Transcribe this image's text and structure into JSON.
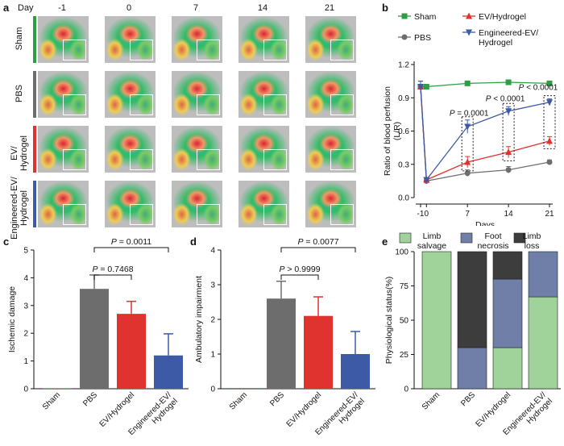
{
  "panel_a": {
    "label": "a",
    "day_prefix": "Day",
    "days": [
      "-1",
      "0",
      "7",
      "14",
      "21"
    ],
    "rows": [
      {
        "label": "Sham",
        "color": "#2e9e44"
      },
      {
        "label": "PBS",
        "color": "#6d6d6d"
      },
      {
        "label": "EV/\nHydrogel",
        "color": "#e0322e"
      },
      {
        "label": "Engineered-EV/\nHydrogel",
        "color": "#3c5aa6"
      }
    ]
  },
  "panel_b": {
    "label": "b",
    "legend": [
      "Sham",
      "EV/Hydrogel",
      "PBS",
      "Engineered-EV/\nHydrogel"
    ],
    "annotations": [
      "P = 0.0001",
      "P < 0.0001",
      "P < 0.0001"
    ]
  },
  "panel_c": {
    "label": "c",
    "annotations": [
      "P = 0.0011",
      "P = 0.7468"
    ]
  },
  "panel_d": {
    "label": "d",
    "annotations": [
      "P = 0.0077",
      "P > 0.9999"
    ]
  },
  "panel_e": {
    "label": "e",
    "legend": [
      "Limb\nsalvage",
      "Foot\nnecrosis",
      "Limb\nloss"
    ]
  },
  "chart_data": [
    {
      "type": "line",
      "ylabel": "Ratio of blood perfusion (L/R)",
      "xlabel": "Days",
      "x": [
        -1,
        0,
        7,
        14,
        21
      ],
      "xticks": [
        "-1",
        "0",
        "7",
        "14",
        "21"
      ],
      "yticks": [
        "0.0",
        "0.3",
        "0.6",
        "0.9",
        "1.2"
      ],
      "ylim": [
        0,
        1.2
      ],
      "series": [
        {
          "name": "Sham",
          "color": "#2e9e44",
          "marker": "square",
          "values": [
            1.0,
            1.0,
            1.03,
            1.04,
            1.03
          ],
          "err": [
            0.02,
            0.01,
            0.01,
            0.01,
            0.02
          ]
        },
        {
          "name": "PBS",
          "color": "#6d6d6d",
          "marker": "circle",
          "values": [
            1.0,
            0.15,
            0.22,
            0.25,
            0.32
          ],
          "err": [
            0.05,
            0.02,
            0.03,
            0.03,
            0.02
          ]
        },
        {
          "name": "EV/Hydrogel",
          "color": "#e0322e",
          "marker": "triangle-up",
          "values": [
            1.0,
            0.16,
            0.32,
            0.41,
            0.51
          ],
          "err": [
            0.05,
            0.02,
            0.05,
            0.05,
            0.04
          ]
        },
        {
          "name": "Engineered-EV/Hydrogel",
          "color": "#3c5aa6",
          "marker": "triangle-down",
          "values": [
            1.0,
            0.16,
            0.64,
            0.78,
            0.86
          ],
          "err": [
            0.05,
            0.02,
            0.06,
            0.04,
            0.03
          ]
        }
      ]
    },
    {
      "type": "bar",
      "ylabel": "Ischemic damage",
      "categories": [
        "Sham",
        "PBS",
        "EV/Hydrogel",
        "Engineered-EV/\nHydrogel"
      ],
      "values": [
        0.02,
        3.6,
        2.7,
        1.2
      ],
      "err": [
        0,
        0.5,
        0.45,
        0.78
      ],
      "colors": [
        "#2e9e44",
        "#6d6d6d",
        "#e0322e",
        "#3c5aa6"
      ],
      "yticks": [
        "0",
        "1",
        "2",
        "3",
        "4",
        "5"
      ],
      "ylim": [
        0,
        5
      ]
    },
    {
      "type": "bar",
      "ylabel": "Ambulatory impairment",
      "categories": [
        "Sham",
        "PBS",
        "EV/Hydrogel",
        "Engineered-EV/\nHydrogel"
      ],
      "values": [
        0.02,
        2.6,
        2.1,
        1.0
      ],
      "err": [
        0,
        0.5,
        0.55,
        0.65
      ],
      "colors": [
        "#2e9e44",
        "#6d6d6d",
        "#e0322e",
        "#3c5aa6"
      ],
      "yticks": [
        "0",
        "1",
        "2",
        "3",
        "4"
      ],
      "ylim": [
        0,
        4
      ]
    },
    {
      "type": "bar",
      "ylabel": "Physiological status(%)",
      "categories": [
        "Sham",
        "PBS",
        "EV/Hydrogel",
        "Engineered-EV/\nHydrogel"
      ],
      "series": [
        {
          "name": "Limb salvage",
          "color": "#9fd39a",
          "values": [
            100,
            0,
            30,
            67
          ]
        },
        {
          "name": "Foot necrosis",
          "color": "#6f7fa8",
          "values": [
            0,
            30,
            50,
            33
          ]
        },
        {
          "name": "Limb loss",
          "color": "#3d3d3d",
          "values": [
            0,
            70,
            20,
            0
          ]
        }
      ],
      "yticks": [
        "0",
        "25",
        "50",
        "75",
        "100"
      ],
      "ylim": [
        0,
        100
      ]
    }
  ]
}
